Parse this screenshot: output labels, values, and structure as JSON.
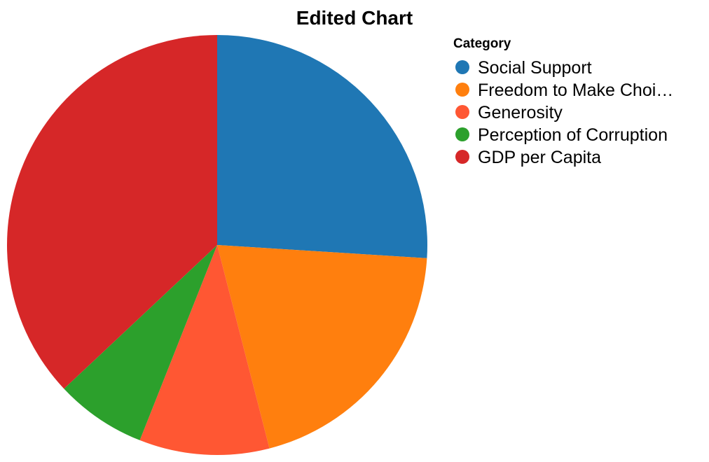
{
  "chart_data": {
    "type": "pie",
    "title": "Edited Chart",
    "legend_title": "Category",
    "legend_position": "right",
    "categories": [
      "Social Support",
      "Freedom to Make Choi…",
      "Generosity",
      "Perception of Corruption",
      "GDP per Capita"
    ],
    "values": [
      26,
      20,
      10,
      7,
      37
    ],
    "colors": [
      "#1f77b4",
      "#ff7f0e",
      "#ff5733",
      "#2ca02c",
      "#d62728"
    ]
  }
}
